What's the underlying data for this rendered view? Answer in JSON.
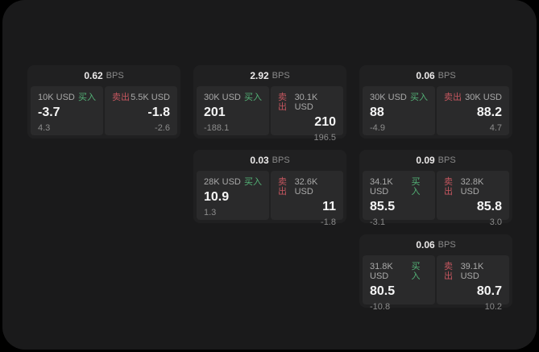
{
  "labels": {
    "buy": "买入",
    "sell": "卖出",
    "bps": "BPS"
  },
  "colors": {
    "buy_green": "#53b176",
    "sell_red": "#c4565f",
    "window_bg": "#1a1a1b",
    "card_bg": "#202021",
    "panel_bg": "#2a2a2b"
  },
  "cards": [
    {
      "bps": "0.62",
      "col": 0,
      "row": 0,
      "buy": {
        "size": "10K USD",
        "value": "-3.7",
        "sub": "4.3"
      },
      "sell": {
        "size": "5.5K USD",
        "value": "-1.8",
        "sub": "-2.6"
      }
    },
    {
      "bps": "2.92",
      "col": 1,
      "row": 0,
      "buy": {
        "size": "30K USD",
        "value": "201",
        "sub": "-188.1"
      },
      "sell": {
        "size": "30.1K USD",
        "value": "210",
        "sub": "196.5"
      }
    },
    {
      "bps": "0.06",
      "col": 2,
      "row": 0,
      "buy": {
        "size": "30K USD",
        "value": "88",
        "sub": "-4.9"
      },
      "sell": {
        "size": "30K USD",
        "value": "88.2",
        "sub": "4.7"
      }
    },
    {
      "bps": "0.03",
      "col": 1,
      "row": 1,
      "buy": {
        "size": "28K USD",
        "value": "10.9",
        "sub": "1.3"
      },
      "sell": {
        "size": "32.6K USD",
        "value": "11",
        "sub": "-1.8"
      }
    },
    {
      "bps": "0.09",
      "col": 2,
      "row": 1,
      "buy": {
        "size": "34.1K USD",
        "value": "85.5",
        "sub": "-3.1"
      },
      "sell": {
        "size": "32.8K USD",
        "value": "85.8",
        "sub": "3.0"
      }
    },
    {
      "bps": "0.06",
      "col": 2,
      "row": 2,
      "buy": {
        "size": "31.8K USD",
        "value": "80.5",
        "sub": "-10.8"
      },
      "sell": {
        "size": "39.1K USD",
        "value": "80.7",
        "sub": "10.2"
      }
    }
  ]
}
